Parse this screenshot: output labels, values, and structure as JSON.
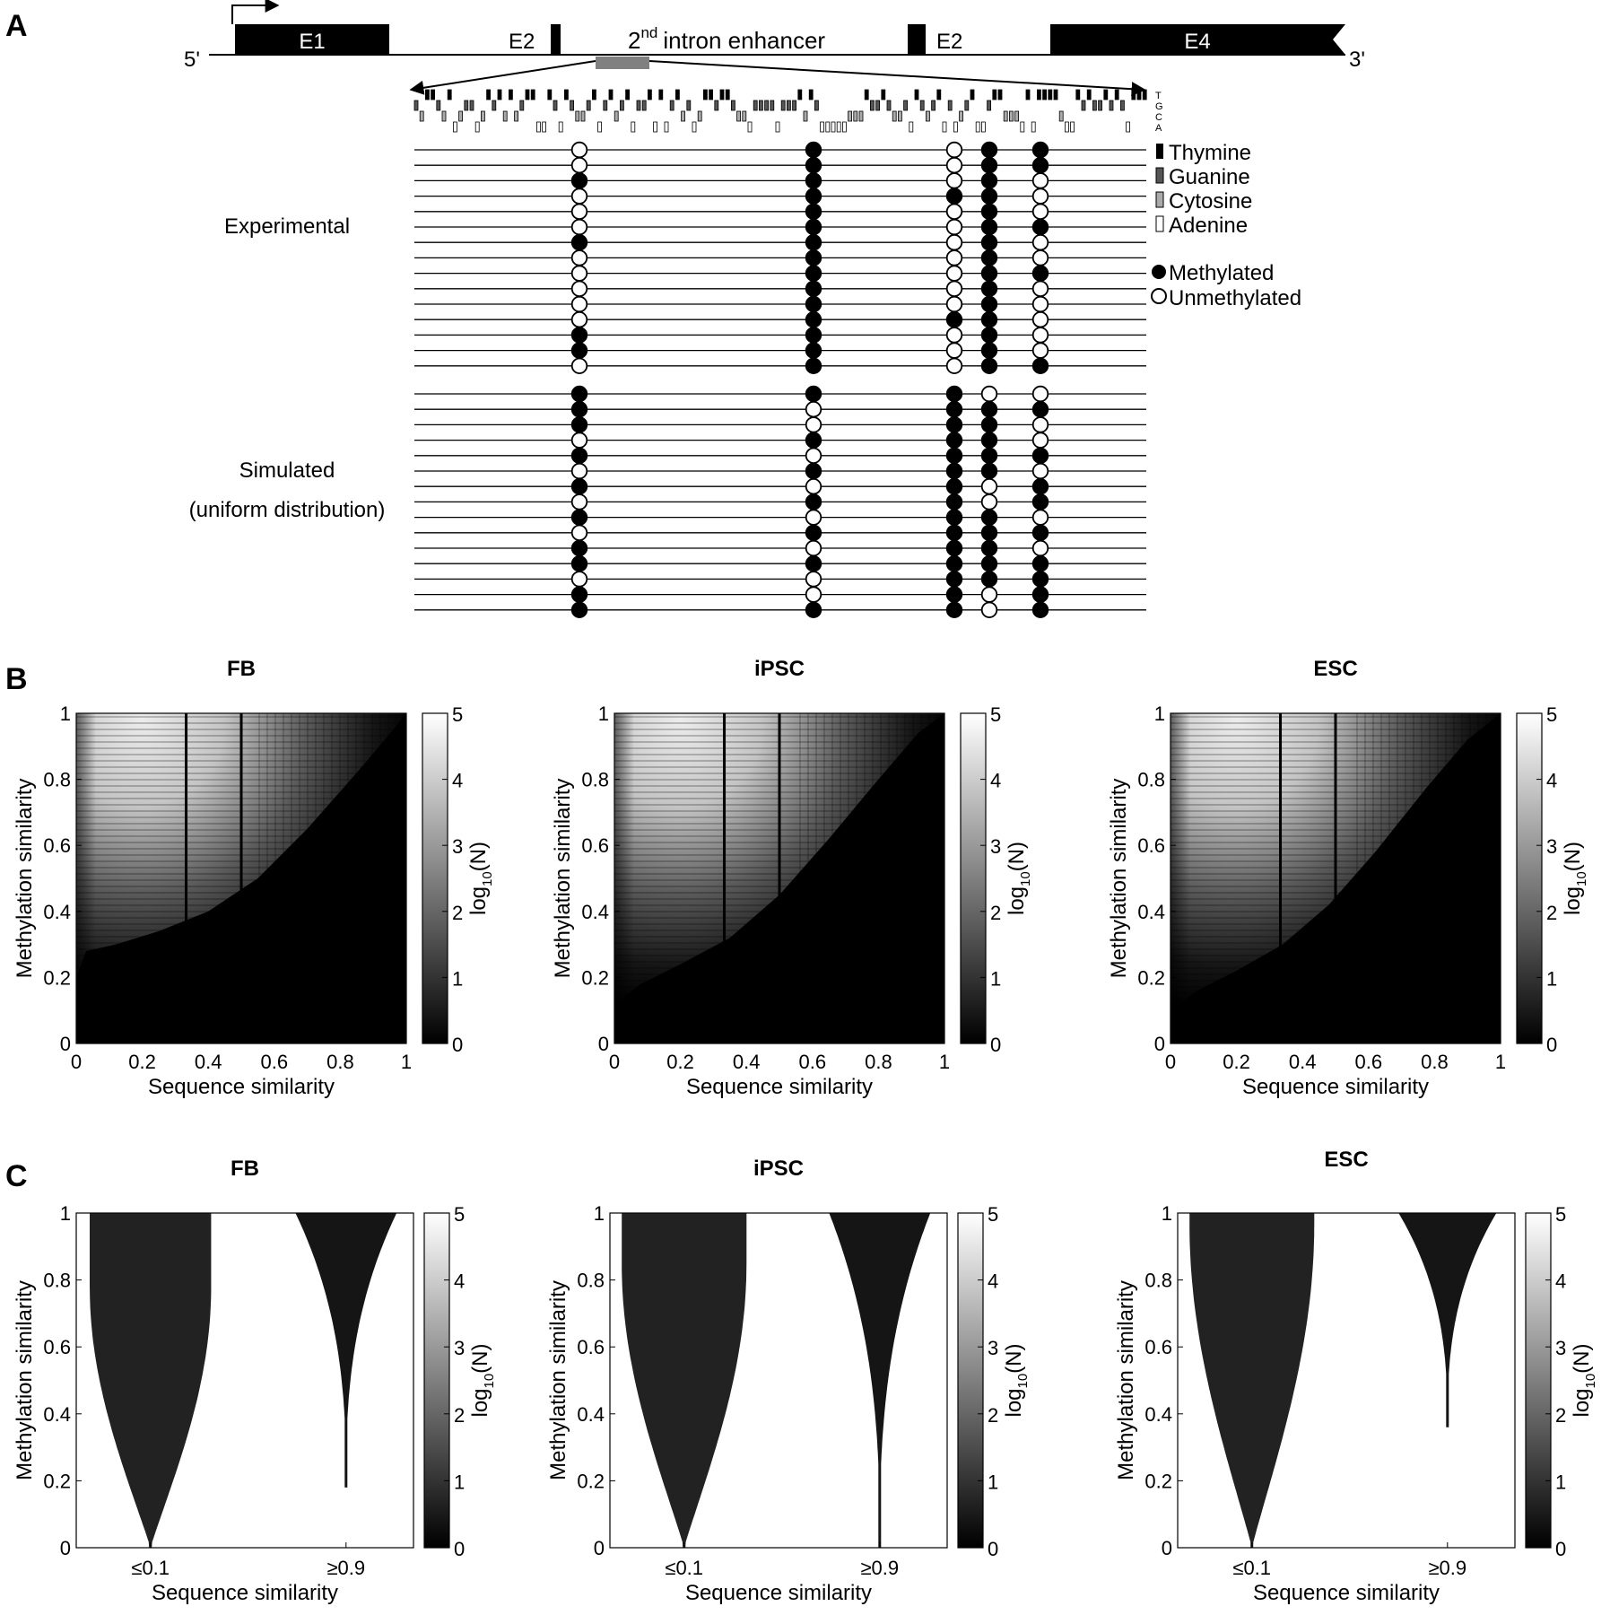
{
  "panel_a": {
    "letter": "A",
    "strand_5": "5'",
    "strand_3": "3'",
    "exons": [
      "E1",
      "E2",
      "E2",
      "E4"
    ],
    "enhancer_label": "intron enhancer",
    "enhancer_ordinal": "2",
    "enhancer_superscript": "nd",
    "base_letters": [
      "T",
      "G",
      "C",
      "A"
    ],
    "legend_bases": [
      "Thymine",
      "Guanine",
      "Cytosine",
      "Adenine"
    ],
    "legend_methylation": [
      "Methylated",
      "Unmethylated"
    ],
    "group_experimental": "Experimental",
    "group_simulated_1": "Simulated",
    "group_simulated_2": "(uniform distribution)",
    "experimental_rows": [
      [
        0,
        1,
        0,
        1,
        1
      ],
      [
        0,
        1,
        0,
        1,
        1
      ],
      [
        1,
        1,
        0,
        1,
        0
      ],
      [
        0,
        1,
        1,
        1,
        0
      ],
      [
        0,
        1,
        0,
        1,
        0
      ],
      [
        0,
        1,
        0,
        1,
        1
      ],
      [
        1,
        1,
        0,
        1,
        0
      ],
      [
        0,
        1,
        0,
        1,
        0
      ],
      [
        0,
        1,
        0,
        1,
        1
      ],
      [
        0,
        1,
        0,
        1,
        0
      ],
      [
        0,
        1,
        0,
        1,
        0
      ],
      [
        0,
        1,
        1,
        1,
        0
      ],
      [
        1,
        1,
        0,
        1,
        0
      ],
      [
        1,
        1,
        0,
        1,
        0
      ],
      [
        0,
        1,
        0,
        1,
        1
      ]
    ],
    "simulated_rows": [
      [
        1,
        1,
        1,
        0,
        0
      ],
      [
        1,
        0,
        1,
        1,
        1
      ],
      [
        1,
        0,
        1,
        1,
        0
      ],
      [
        0,
        1,
        1,
        1,
        0
      ],
      [
        1,
        0,
        1,
        1,
        1
      ],
      [
        0,
        1,
        1,
        1,
        0
      ],
      [
        1,
        0,
        1,
        0,
        1
      ],
      [
        0,
        1,
        1,
        0,
        1
      ],
      [
        1,
        0,
        1,
        1,
        0
      ],
      [
        0,
        1,
        1,
        1,
        1
      ],
      [
        1,
        0,
        1,
        1,
        0
      ],
      [
        1,
        1,
        1,
        1,
        1
      ],
      [
        0,
        0,
        1,
        1,
        1
      ],
      [
        1,
        0,
        1,
        0,
        1
      ],
      [
        1,
        1,
        1,
        0,
        1
      ]
    ]
  },
  "panel_b": {
    "letter": "B",
    "titles": [
      "FB",
      "iPSC",
      "ESC"
    ],
    "xlabel": "Sequence similarity",
    "ylabel": "Methylation similarity",
    "cbar_label_main": "log",
    "cbar_label_sub": "10",
    "cbar_label_tail": "(N)",
    "xticks": [
      "0",
      "0.2",
      "0.4",
      "0.6",
      "0.8",
      "1"
    ],
    "yticks": [
      "0",
      "0.2",
      "0.4",
      "0.6",
      "0.8",
      "1"
    ],
    "cbar_ticks": [
      "0",
      "1",
      "2",
      "3",
      "4",
      "5"
    ]
  },
  "panel_c": {
    "letter": "C",
    "titles": [
      "FB",
      "iPSC",
      "ESC"
    ],
    "xlabel": "Sequence similarity",
    "ylabel": "Methylation similarity",
    "cbar_label_main": "log",
    "cbar_label_sub": "10",
    "cbar_label_tail": "(N)",
    "xticks": [
      "≤0.1",
      "≥0.9"
    ],
    "yticks": [
      "0",
      "0.2",
      "0.4",
      "0.6",
      "0.8",
      "1"
    ],
    "cbar_ticks": [
      "0",
      "1",
      "2",
      "3",
      "4",
      "5"
    ]
  },
  "chart_data": [
    {
      "type": "heatmap",
      "title": "FB",
      "xlabel": "Sequence similarity",
      "ylabel": "Methylation similarity",
      "xlim": [
        0,
        1
      ],
      "ylim": [
        0,
        1
      ],
      "colorbar": {
        "label": "log10(N)",
        "range": [
          0,
          5
        ]
      }
    },
    {
      "type": "heatmap",
      "title": "iPSC",
      "xlabel": "Sequence similarity",
      "ylabel": "Methylation similarity",
      "xlim": [
        0,
        1
      ],
      "ylim": [
        0,
        1
      ],
      "colorbar": {
        "label": "log10(N)",
        "range": [
          0,
          5
        ]
      }
    },
    {
      "type": "heatmap",
      "title": "ESC",
      "xlabel": "Sequence similarity",
      "ylabel": "Methylation similarity",
      "xlim": [
        0,
        1
      ],
      "ylim": [
        0,
        1
      ],
      "colorbar": {
        "label": "log10(N)",
        "range": [
          0,
          5
        ]
      }
    },
    {
      "type": "area",
      "title": "FB",
      "categories": [
        "≤0.1",
        "≥0.9"
      ],
      "xlabel": "Sequence similarity",
      "ylabel": "Methylation similarity",
      "ylim": [
        0,
        1
      ],
      "min_methylation": [
        0,
        0.18
      ],
      "colorbar": {
        "label": "log10(N)",
        "range": [
          0,
          5
        ]
      }
    },
    {
      "type": "area",
      "title": "iPSC",
      "categories": [
        "≤0.1",
        "≥0.9"
      ],
      "xlabel": "Sequence similarity",
      "ylabel": "Methylation similarity",
      "ylim": [
        0,
        1
      ],
      "min_methylation": [
        0,
        0
      ],
      "colorbar": {
        "label": "log10(N)",
        "range": [
          0,
          5
        ]
      }
    },
    {
      "type": "area",
      "title": "ESC",
      "categories": [
        "≤0.1",
        "≥0.9"
      ],
      "xlabel": "Sequence similarity",
      "ylabel": "Methylation similarity",
      "ylim": [
        0,
        1
      ],
      "min_methylation": [
        0,
        0.36
      ],
      "colorbar": {
        "label": "log10(N)",
        "range": [
          0,
          5
        ]
      }
    }
  ]
}
